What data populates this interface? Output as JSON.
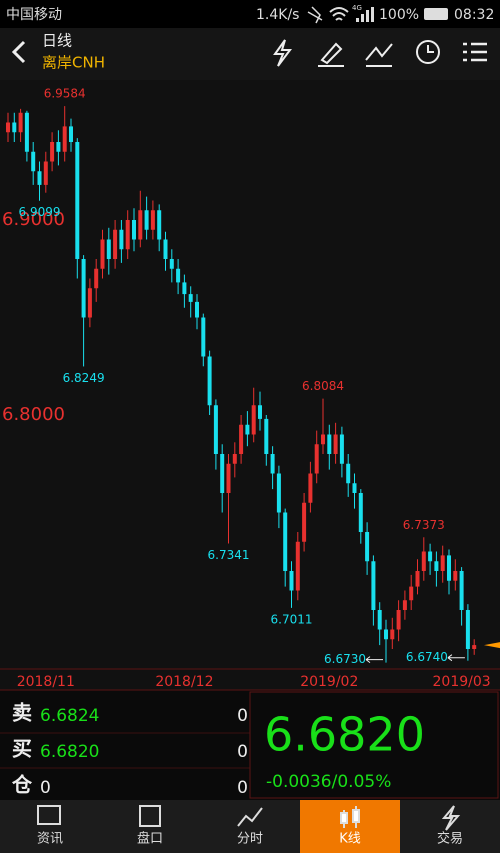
{
  "status_bar": {
    "carrier": "中国移动",
    "speed": "1.4K/s",
    "network": "4G",
    "battery": "100%",
    "time": "08:32"
  },
  "header": {
    "title": "日线",
    "subtitle": "离岸CNH"
  },
  "chart_data": {
    "type": "candlestick",
    "open": [
      6.945,
      6.95,
      6.945,
      6.955,
      6.935,
      6.925,
      6.918,
      6.93,
      6.94,
      6.935,
      6.948,
      6.94,
      6.88,
      6.85,
      6.865,
      6.875,
      6.89,
      6.88,
      6.895,
      6.885,
      6.9,
      6.89,
      6.905,
      6.895,
      6.905,
      6.89,
      6.88,
      6.875,
      6.868,
      6.862,
      6.858,
      6.85,
      6.83,
      6.805,
      6.78,
      6.76,
      6.775,
      6.78,
      6.795,
      6.79,
      6.805,
      6.798,
      6.78,
      6.77,
      6.75,
      6.72,
      6.71,
      6.735,
      6.755,
      6.77,
      6.785,
      6.79,
      6.78,
      6.79,
      6.775,
      6.765,
      6.76,
      6.74,
      6.725,
      6.7,
      6.69,
      6.685,
      6.69,
      6.7,
      6.705,
      6.712,
      6.72,
      6.73,
      6.725,
      6.72,
      6.728,
      6.715,
      6.72,
      6.7,
      6.68
    ],
    "high": [
      6.955,
      6.955,
      6.957,
      6.956,
      6.94,
      6.93,
      6.935,
      6.945,
      6.946,
      6.9584,
      6.952,
      6.942,
      6.882,
      6.87,
      6.88,
      6.895,
      6.896,
      6.9,
      6.9,
      6.905,
      6.906,
      6.915,
      6.912,
      6.91,
      6.908,
      6.894,
      6.885,
      6.88,
      6.872,
      6.866,
      6.862,
      6.852,
      6.833,
      6.808,
      6.785,
      6.78,
      6.786,
      6.8,
      6.802,
      6.814,
      6.812,
      6.8,
      6.784,
      6.774,
      6.752,
      6.725,
      6.74,
      6.76,
      6.776,
      6.792,
      6.8084,
      6.795,
      6.796,
      6.794,
      6.78,
      6.77,
      6.762,
      6.745,
      6.728,
      6.704,
      6.695,
      6.696,
      6.705,
      6.71,
      6.718,
      6.726,
      6.7373,
      6.734,
      6.73,
      6.733,
      6.731,
      6.726,
      6.722,
      6.703,
      6.685
    ],
    "low": [
      6.94,
      6.94,
      6.94,
      6.93,
      6.918,
      6.9099,
      6.914,
      6.925,
      6.928,
      6.93,
      6.935,
      6.87,
      6.8249,
      6.845,
      6.858,
      6.87,
      6.872,
      6.875,
      6.878,
      6.88,
      6.884,
      6.886,
      6.89,
      6.89,
      6.884,
      6.874,
      6.868,
      6.862,
      6.855,
      6.85,
      6.844,
      6.825,
      6.8,
      6.772,
      6.75,
      6.7341,
      6.768,
      6.775,
      6.784,
      6.786,
      6.792,
      6.774,
      6.762,
      6.742,
      6.712,
      6.7011,
      6.705,
      6.73,
      6.75,
      6.765,
      6.78,
      6.772,
      6.775,
      6.768,
      6.758,
      6.752,
      6.734,
      6.718,
      6.692,
      6.682,
      6.673,
      6.68,
      6.684,
      6.695,
      6.7,
      6.708,
      6.715,
      6.718,
      6.712,
      6.714,
      6.708,
      6.71,
      6.692,
      6.674,
      6.677
    ],
    "close": [
      6.95,
      6.945,
      6.955,
      6.935,
      6.925,
      6.918,
      6.93,
      6.94,
      6.935,
      6.948,
      6.94,
      6.88,
      6.85,
      6.865,
      6.875,
      6.89,
      6.88,
      6.895,
      6.885,
      6.9,
      6.89,
      6.905,
      6.895,
      6.905,
      6.89,
      6.88,
      6.875,
      6.868,
      6.862,
      6.858,
      6.85,
      6.83,
      6.805,
      6.78,
      6.76,
      6.775,
      6.78,
      6.795,
      6.79,
      6.805,
      6.798,
      6.78,
      6.77,
      6.75,
      6.72,
      6.71,
      6.735,
      6.755,
      6.77,
      6.785,
      6.79,
      6.78,
      6.79,
      6.775,
      6.765,
      6.76,
      6.74,
      6.725,
      6.7,
      6.69,
      6.685,
      6.69,
      6.7,
      6.705,
      6.712,
      6.72,
      6.73,
      6.725,
      6.72,
      6.728,
      6.715,
      6.72,
      6.7,
      6.68,
      6.682
    ],
    "categories": [
      null,
      null,
      null,
      null,
      null,
      null,
      "2018/11",
      null,
      null,
      null,
      null,
      null,
      null,
      null,
      null,
      null,
      null,
      null,
      null,
      null,
      null,
      null,
      null,
      null,
      null,
      null,
      null,
      null,
      "2018/12",
      null,
      null,
      null,
      null,
      null,
      null,
      null,
      null,
      null,
      null,
      null,
      null,
      null,
      null,
      null,
      null,
      null,
      null,
      null,
      null,
      null,
      null,
      "2019/02",
      null,
      null,
      null,
      null,
      null,
      null,
      null,
      null,
      null,
      null,
      null,
      null,
      null,
      null,
      null,
      null,
      null,
      null,
      null,
      null,
      "2019/03",
      null,
      null
    ],
    "high_labels": [
      null,
      null,
      null,
      null,
      null,
      null,
      null,
      null,
      null,
      "6.9584",
      null,
      null,
      null,
      null,
      null,
      null,
      null,
      null,
      null,
      null,
      null,
      null,
      null,
      null,
      null,
      null,
      null,
      null,
      null,
      null,
      null,
      null,
      null,
      null,
      null,
      null,
      null,
      null,
      null,
      null,
      null,
      null,
      null,
      null,
      null,
      null,
      null,
      null,
      null,
      null,
      "6.8084",
      null,
      null,
      null,
      null,
      null,
      null,
      null,
      null,
      null,
      null,
      null,
      null,
      null,
      null,
      null,
      "6.7373",
      null,
      null,
      null,
      null,
      null,
      null,
      null,
      null
    ],
    "low_labels": [
      null,
      null,
      null,
      null,
      null,
      "6.9099",
      null,
      null,
      null,
      null,
      null,
      null,
      "6.8249",
      null,
      null,
      null,
      null,
      null,
      null,
      null,
      null,
      null,
      null,
      null,
      null,
      null,
      null,
      null,
      null,
      null,
      null,
      null,
      null,
      null,
      null,
      "6.7341",
      null,
      null,
      null,
      null,
      null,
      null,
      null,
      null,
      null,
      "6.7011",
      null,
      null,
      null,
      null,
      null,
      null,
      null,
      null,
      null,
      null,
      null,
      null,
      null,
      null,
      "6.6730",
      null,
      null,
      null,
      null,
      null,
      null,
      null,
      null,
      null,
      null,
      null,
      null,
      "6.6740",
      null
    ],
    "up_color": "#e8312f",
    "down_color": "#19e0ee",
    "last_price_color": "#ff9900",
    "ylim": [
      6.67,
      6.97
    ],
    "yticks": [
      {
        "value": 6.9,
        "label": "6.9000"
      },
      {
        "value": 6.8,
        "label": "6.8000"
      }
    ],
    "grid": false
  },
  "quote": {
    "sell_label": "卖",
    "sell_price": "6.6824",
    "sell_volume": "0",
    "buy_label": "买",
    "buy_price": "6.6820",
    "buy_volume": "0",
    "position_label": "仓",
    "position_value": "0",
    "position_volume": "0",
    "last_price": "6.6820",
    "change": "-0.0036/0.05%"
  },
  "tabs": [
    {
      "label": "资讯"
    },
    {
      "label": "盘口"
    },
    {
      "label": "分时"
    },
    {
      "label": "K线"
    },
    {
      "label": "交易"
    }
  ]
}
